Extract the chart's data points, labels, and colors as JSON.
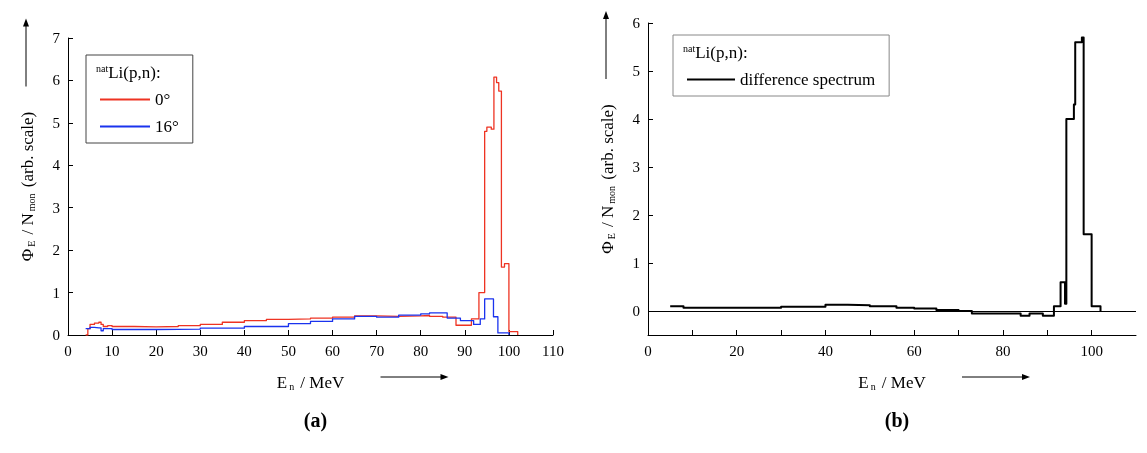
{
  "chart_data": [
    {
      "type": "step",
      "title": "(a)",
      "xlabel": "E$_{n}$ / MeV",
      "ylabel": "Φ$_{E}$ / N$_{mon}$ (arb. scale)",
      "legend_title": "$^{nat}$Li(p,n):",
      "legend": "top left",
      "grid": false,
      "xlim": [
        0,
        110
      ],
      "xticks": [
        0,
        10,
        20,
        30,
        40,
        50,
        60,
        70,
        80,
        90,
        100,
        110
      ],
      "ylim": [
        0,
        7
      ],
      "yticks": [
        0,
        1,
        2,
        3,
        4,
        5,
        6,
        7
      ],
      "series": [
        {
          "name": "0°",
          "color": "#ee3322",
          "x": [
            4,
            4.5,
            5,
            6,
            7,
            7.5,
            8,
            9,
            10,
            15,
            20,
            25,
            30,
            35,
            40,
            45,
            50,
            55,
            60,
            65,
            70,
            75,
            80,
            82,
            85,
            88,
            91.5,
            93.2,
            94.5,
            95,
            96,
            96.6,
            97.2,
            97.7,
            98.3,
            99,
            100,
            102
          ],
          "values": [
            0,
            0.15,
            0.25,
            0.28,
            0.3,
            0.25,
            0.2,
            0.22,
            0.2,
            0.19,
            0.2,
            0.22,
            0.25,
            0.3,
            0.34,
            0.37,
            0.38,
            0.4,
            0.42,
            0.45,
            0.44,
            0.45,
            0.46,
            0.44,
            0.42,
            0.23,
            0.38,
            1.0,
            4.8,
            4.9,
            4.85,
            6.08,
            5.95,
            5.75,
            1.6,
            1.68,
            0.08,
            0
          ]
        },
        {
          "name": "16°",
          "color": "#1a33ee",
          "x": [
            4,
            5,
            6,
            7,
            7.5,
            8,
            10,
            20,
            30,
            40,
            50,
            55,
            60,
            65,
            70,
            75,
            80,
            82,
            86,
            89,
            92,
            93.5,
            94.5,
            96.5,
            97.5,
            100
          ],
          "values": [
            0.15,
            0.18,
            0.17,
            0.17,
            0.1,
            0.15,
            0.13,
            0.14,
            0.16,
            0.2,
            0.27,
            0.32,
            0.38,
            0.44,
            0.42,
            0.47,
            0.5,
            0.52,
            0.4,
            0.34,
            0.25,
            0.38,
            0.85,
            0.43,
            0.05,
            0
          ]
        }
      ]
    },
    {
      "type": "step",
      "title": "(b)",
      "xlabel": "E$_{n}$ / MeV",
      "ylabel": "Φ$_{E}$ / N$_{mon}$ (arb. scale)",
      "legend_title": "$^{nat}$Li(p,n):",
      "legend": "top left",
      "grid": false,
      "xlim": [
        0,
        110
      ],
      "xticks": [
        0,
        {
          "value": 10,
          "label": null
        },
        20,
        {
          "value": 30,
          "label": null
        },
        40,
        {
          "value": 50,
          "label": null
        },
        60,
        {
          "value": 70,
          "label": null
        },
        80,
        {
          "value": 90,
          "label": null
        },
        100
      ],
      "ylim": [
        -0.5,
        6
      ],
      "yticks": [
        0,
        1,
        2,
        3,
        4,
        5,
        6
      ],
      "ref_lines": [
        {
          "axis": "y",
          "value": 0,
          "color": "#000000"
        }
      ],
      "series": [
        {
          "name": "difference spectrum",
          "color": "#000000",
          "x": [
            5,
            8,
            20,
            30,
            40,
            45,
            50,
            56,
            60,
            65,
            70,
            73,
            84,
            86,
            89,
            91.5,
            93,
            94,
            94.3,
            96,
            96.3,
            97.8,
            98.2,
            100,
            102
          ],
          "values": [
            0.1,
            0.07,
            0.07,
            0.09,
            0.13,
            0.12,
            0.1,
            0.07,
            0.05,
            0.02,
            0,
            -0.05,
            -0.1,
            -0.05,
            -0.1,
            0.1,
            0.6,
            0.15,
            4.0,
            4.3,
            5.6,
            5.7,
            1.6,
            0.1,
            0
          ]
        }
      ]
    }
  ]
}
